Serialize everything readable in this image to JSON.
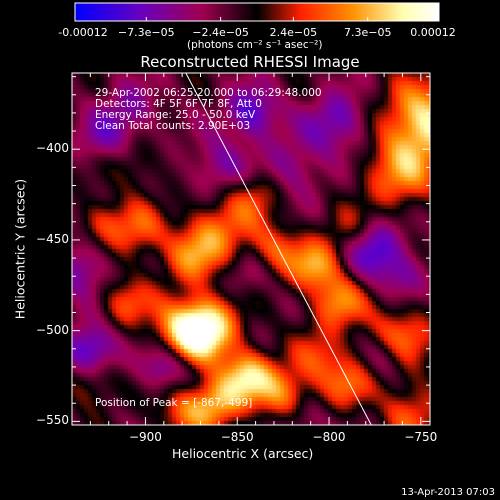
{
  "colorbar": {
    "tick_labels": [
      "-0.00012",
      "−7.3e−05",
      "−2.4e−05",
      "2.4e−05",
      "7.3e−05",
      "0.00012"
    ],
    "tick_values": [
      -0.00012,
      -7.3e-05,
      -2.4e-05,
      2.4e-05,
      7.3e-05,
      0.00012
    ],
    "range": [
      -0.00012,
      0.00012
    ],
    "unit_label": "(photons cm⁻² s⁻¹ asec⁻²)"
  },
  "chart_data": {
    "type": "heatmap",
    "title": "Reconstructed RHESSI Image",
    "xlabel": "Heliocentric X (arcsec)",
    "ylabel": "Heliocentric Y (arcsec)",
    "xlim": [
      -940,
      -745
    ],
    "ylim": [
      -552,
      -358
    ],
    "xticks": [
      -900,
      -850,
      -800,
      -750
    ],
    "yticks": [
      -400,
      -450,
      -500,
      -550
    ],
    "info_lines": [
      "29-Apr-2002 06:25:20.000 to 06:29:48.000",
      "Detectors: 4F 5F 6F 7F 8F, Att 0",
      "Energy Range: 25.0 - 50.0 keV",
      "Clean     Total counts: 2.90E+03"
    ],
    "peak_label": "Position of Peak = [-867,-499]",
    "peak": [
      -867,
      -499
    ],
    "limb_line": [
      [
        -878,
        -358
      ],
      [
        -777,
        -552
      ]
    ],
    "colormap": [
      "#0000ff",
      "#6a00c0",
      "#a00050",
      "#000000",
      "#ff2000",
      "#ff9000",
      "#ffffb0",
      "#ffffff"
    ],
    "blobs": [
      {
        "x": -748,
        "y": -385,
        "v": 0.92,
        "s": 16
      },
      {
        "x": -762,
        "y": -415,
        "v": 0.55,
        "s": 14
      },
      {
        "x": -762,
        "y": -505,
        "v": 0.55,
        "s": 14
      },
      {
        "x": -755,
        "y": -545,
        "v": 0.45,
        "s": 12
      },
      {
        "x": -867,
        "y": -499,
        "v": 1.0,
        "s": 12
      },
      {
        "x": -880,
        "y": -500,
        "v": 0.6,
        "s": 12
      },
      {
        "x": -845,
        "y": -525,
        "v": 0.8,
        "s": 10
      },
      {
        "x": -862,
        "y": -540,
        "v": 0.7,
        "s": 10
      },
      {
        "x": -825,
        "y": -535,
        "v": 0.6,
        "s": 11
      },
      {
        "x": -808,
        "y": -465,
        "v": 0.68,
        "s": 10
      },
      {
        "x": -795,
        "y": -485,
        "v": 0.6,
        "s": 10
      },
      {
        "x": -830,
        "y": -455,
        "v": 0.45,
        "s": 10
      },
      {
        "x": -860,
        "y": -445,
        "v": 0.55,
        "s": 13
      },
      {
        "x": -840,
        "y": -425,
        "v": 0.4,
        "s": 10
      },
      {
        "x": -875,
        "y": -460,
        "v": 0.5,
        "s": 11
      },
      {
        "x": -905,
        "y": -445,
        "v": 0.5,
        "s": 11
      },
      {
        "x": -925,
        "y": -440,
        "v": 0.35,
        "s": 9
      },
      {
        "x": -910,
        "y": -485,
        "v": 0.45,
        "s": 10
      },
      {
        "x": -880,
        "y": -545,
        "v": 0.45,
        "s": 10
      },
      {
        "x": -805,
        "y": -515,
        "v": 0.4,
        "s": 11
      },
      {
        "x": -790,
        "y": -530,
        "v": 0.45,
        "s": 10
      },
      {
        "x": -790,
        "y": -445,
        "v": 0.3,
        "s": 10
      },
      {
        "x": -930,
        "y": -530,
        "v": 0.35,
        "s": 10
      },
      {
        "x": -905,
        "y": -410,
        "v": 0.25,
        "s": 9
      },
      {
        "x": -842,
        "y": -380,
        "v": -0.6,
        "s": 10
      },
      {
        "x": -775,
        "y": -455,
        "v": -0.6,
        "s": 11
      },
      {
        "x": -795,
        "y": -385,
        "v": -0.5,
        "s": 12
      },
      {
        "x": -760,
        "y": -470,
        "v": -0.35,
        "s": 9
      },
      {
        "x": -930,
        "y": -510,
        "v": -0.7,
        "s": 10
      },
      {
        "x": -910,
        "y": -380,
        "v": -0.4,
        "s": 11
      },
      {
        "x": -890,
        "y": -520,
        "v": -0.5,
        "s": 9
      },
      {
        "x": -860,
        "y": -410,
        "v": -0.4,
        "s": 11
      },
      {
        "x": -935,
        "y": -465,
        "v": -0.45,
        "s": 10
      },
      {
        "x": -820,
        "y": -410,
        "v": -0.35,
        "s": 12
      },
      {
        "x": -925,
        "y": -395,
        "v": -0.3,
        "s": 9
      },
      {
        "x": -815,
        "y": -550,
        "v": -0.3,
        "s": 9
      },
      {
        "x": -770,
        "y": -515,
        "v": -0.4,
        "s": 9
      },
      {
        "x": -845,
        "y": -470,
        "v": -0.25,
        "s": 9
      }
    ]
  },
  "footer": {
    "timestamp": "13-Apr-2013 07:03"
  }
}
